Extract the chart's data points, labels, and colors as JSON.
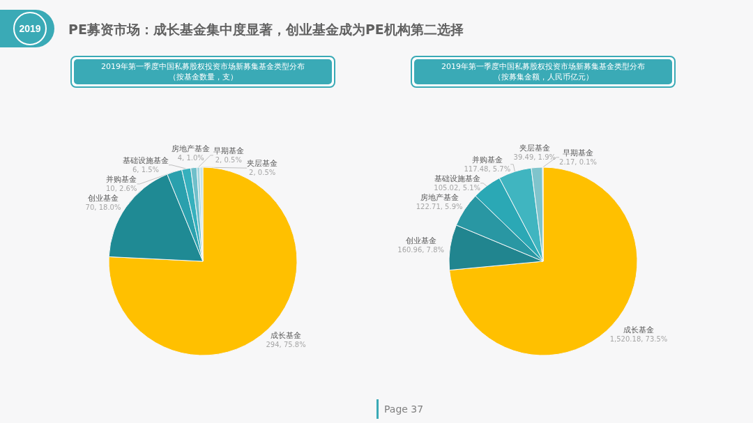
{
  "chart_data": [
    {
      "type": "other",
      "title": "PE募资市场：成长基金集中度显著，创业基金成为PE机构第二选择",
      "annotations": [
        "2019",
        "Page 37"
      ]
    },
    {
      "type": "pie",
      "title": "2019年第一季度中国私募股权投资市场新募集基金类型分布",
      "subtitle": "（按基金数量，支）",
      "categories": [
        "成长基金",
        "创业基金",
        "并购基金",
        "基础设施基金",
        "房地产基金",
        "早期基金",
        "夹层基金"
      ],
      "values": [
        294,
        70,
        10,
        6,
        4,
        2,
        2
      ],
      "value_labels": [
        "294, 75.8%",
        "70, 18.0%",
        "10, 2.6%",
        "6, 1.5%",
        "4, 1.0%",
        "2, 0.5%",
        "2, 0.5%"
      ],
      "colors": [
        "#ffc000",
        "#1f8a94",
        "#2aa0ad",
        "#36b0bd",
        "#6fbfca",
        "#a6d6dc",
        "#c8e4e8"
      ]
    },
    {
      "type": "pie",
      "title": "2019年第一季度中国私募股权投资市场新募集基金类型分布",
      "subtitle": "（按募集金额，人民币亿元）",
      "categories": [
        "成长基金",
        "创业基金",
        "房地产基金",
        "基础设施基金",
        "并购基金",
        "夹层基金",
        "早期基金"
      ],
      "values": [
        1520.18,
        160.96,
        122.71,
        105.02,
        117.48,
        39.49,
        2.17
      ],
      "value_labels": [
        "1,520.18, 73.5%",
        "160.96, 7.8%",
        "122.71, 5.9%",
        "105.02, 5.1%",
        "117.48, 5.7%",
        "39.49, 1.9%",
        "2.17, 0.1%"
      ],
      "colors": [
        "#ffc000",
        "#21858f",
        "#2997a3",
        "#2ba8b5",
        "#40b5c0",
        "#7fc4cc",
        "#a5d5da"
      ]
    }
  ]
}
